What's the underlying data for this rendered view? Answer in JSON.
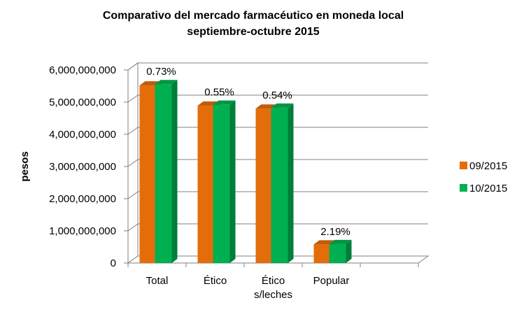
{
  "chart_data": {
    "type": "bar",
    "title": [
      "Comparativo del mercado farmacéutico en moneda local",
      "septiembre-octubre 2015"
    ],
    "ylabel": "pesos",
    "xlabel": "",
    "categories": [
      [
        "Total"
      ],
      [
        "Ético"
      ],
      [
        "Ético",
        "s/leches"
      ],
      [
        "Popular"
      ],
      [
        ""
      ]
    ],
    "series": [
      {
        "name": "09/2015",
        "color": "#e46c0a",
        "values": [
          5520000000,
          4890000000,
          4800000000,
          580000000,
          null
        ]
      },
      {
        "name": "10/2015",
        "color": "#00b050",
        "values": [
          5560000000,
          4920000000,
          4830000000,
          590000000,
          null
        ]
      }
    ],
    "annotations": [
      "0.73%",
      "0.55%",
      "0.54%",
      "2.19%",
      ""
    ],
    "ylim": [
      0,
      6000000000
    ],
    "yticks": [
      0,
      1000000000,
      2000000000,
      3000000000,
      4000000000,
      5000000000,
      6000000000
    ],
    "ytick_labels": [
      "0",
      "1,000,000,000",
      "2,000,000,000",
      "3,000,000,000",
      "4,000,000,000",
      "5,000,000,000",
      "6,000,000,000"
    ],
    "grid": true,
    "legend": "right"
  }
}
